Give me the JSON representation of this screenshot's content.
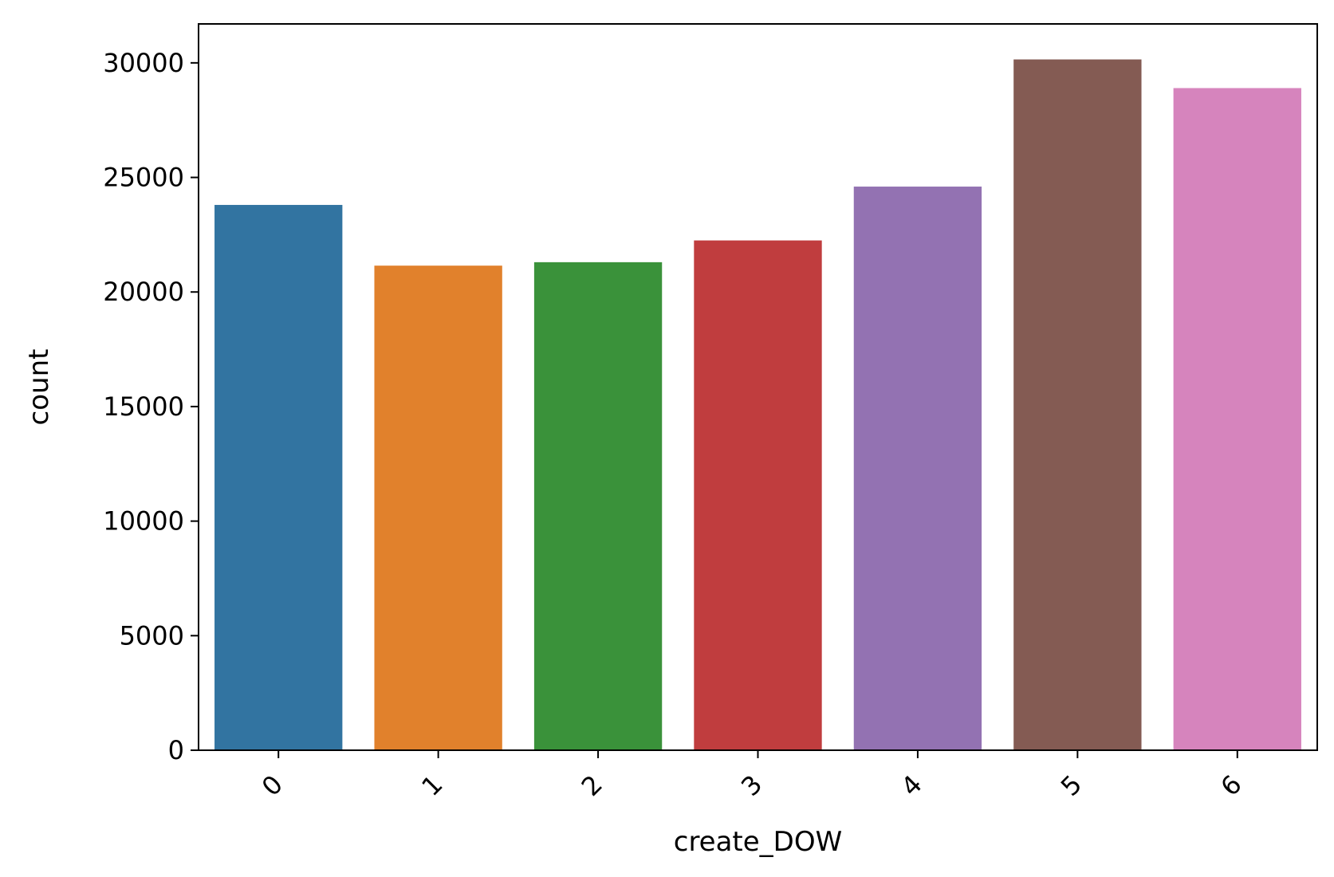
{
  "chart_data": {
    "type": "bar",
    "title": "",
    "xlabel": "create_DOW",
    "ylabel": "count",
    "categories": [
      "0",
      "1",
      "2",
      "3",
      "4",
      "5",
      "6"
    ],
    "values": [
      23800,
      21150,
      21300,
      22250,
      24600,
      30150,
      28900
    ],
    "colors": [
      "#3274a1",
      "#e1812c",
      "#3a923a",
      "#c03d3e",
      "#9372b2",
      "#845b53",
      "#d684bd"
    ],
    "ylim": [
      0,
      31700
    ],
    "yticks": [
      0,
      5000,
      10000,
      15000,
      20000,
      25000,
      30000
    ],
    "grid": false,
    "legend": "none"
  }
}
